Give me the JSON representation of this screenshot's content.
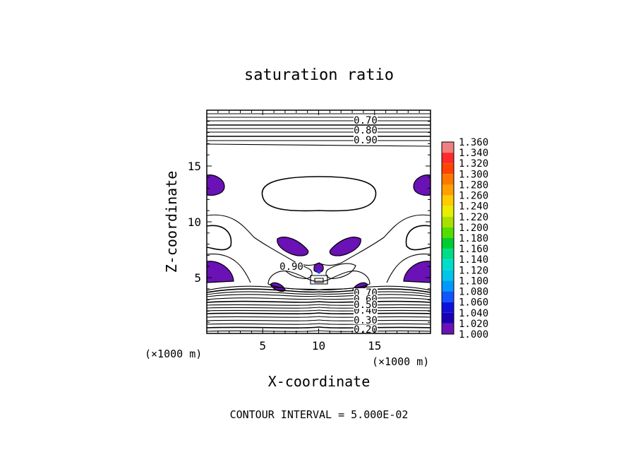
{
  "chart_data": {
    "type": "contour",
    "title": "saturation ratio",
    "xlabel": "X-coordinate",
    "ylabel": "Z-coordinate",
    "x_unit": "(×1000 m)",
    "z_unit": "(×1000 m)",
    "xlim": [
      0,
      20
    ],
    "ylim": [
      0,
      20
    ],
    "x_ticks": [
      5,
      10,
      15
    ],
    "y_ticks": [
      5,
      10,
      15
    ],
    "contour_interval_text": "CONTOUR INTERVAL = 5.000E-02",
    "contour_labels": [
      "0.70",
      "0.80",
      "0.90",
      "0.90",
      "0.40",
      "0.30",
      "0.20",
      "0.70",
      "0.60",
      "0.50"
    ],
    "colorbar": {
      "levels": [
        "1.360",
        "1.340",
        "1.320",
        "1.300",
        "1.280",
        "1.260",
        "1.240",
        "1.220",
        "1.200",
        "1.180",
        "1.160",
        "1.140",
        "1.120",
        "1.100",
        "1.080",
        "1.060",
        "1.040",
        "1.020",
        "1.000"
      ],
      "colors": [
        "#f08080",
        "#ff2a2a",
        "#ff4400",
        "#ff7700",
        "#ffa000",
        "#ffcc00",
        "#e8ee00",
        "#a8e000",
        "#55dd00",
        "#00cc33",
        "#00dd88",
        "#00ddcc",
        "#00c4e8",
        "#0099ff",
        "#1155ff",
        "#1010dd",
        "#1a00b0",
        "#6a12b5"
      ]
    },
    "fill_color": "#6a12b5",
    "core_color": "#1f3fff"
  }
}
